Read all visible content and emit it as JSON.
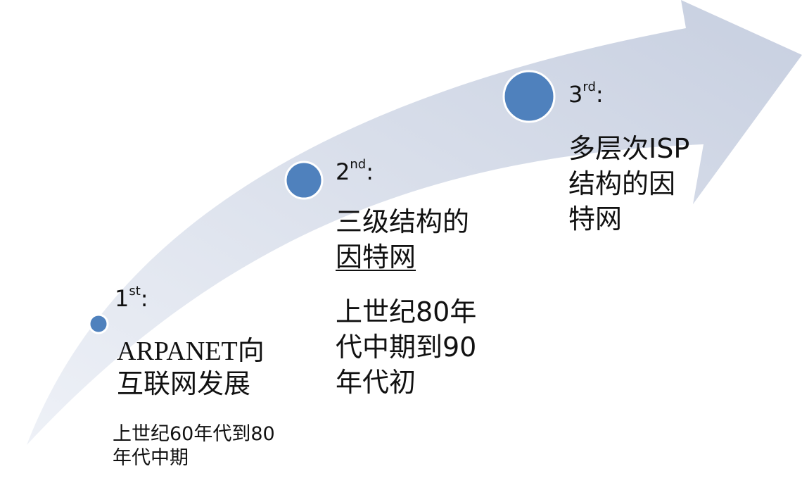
{
  "colors": {
    "arrow_light": "#eef1f7",
    "arrow_dark": "#c7cfe0",
    "milestone": "#4f81bd",
    "text": "#111111"
  },
  "stages": [
    {
      "number": "1",
      "suffix": "st",
      "colon": ":",
      "title_lines": [
        "ARPANET向",
        "互联网发展"
      ],
      "period_lines": [
        "上世纪60年代到80",
        "年代中期"
      ]
    },
    {
      "number": "2",
      "suffix": "nd",
      "colon": ":",
      "title_lines": [
        "三级结构的",
        "因特网"
      ],
      "period_lines": [
        "上世纪80年",
        "代中期到90",
        "年代初"
      ]
    },
    {
      "number": "3",
      "suffix": "rd",
      "colon": ":",
      "title_lines": [
        "多层次ISP",
        "结构的因",
        "特网"
      ]
    }
  ]
}
